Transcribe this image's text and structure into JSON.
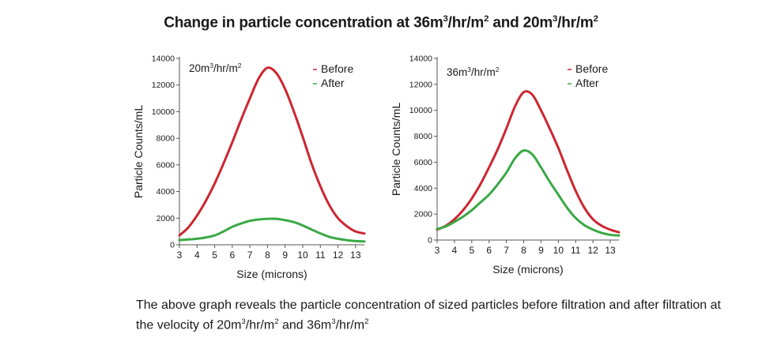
{
  "title": {
    "parts": [
      {
        "t": "Change in particle concentration at 36m"
      },
      {
        "t": "3",
        "sup": true
      },
      {
        "t": "/hr/m"
      },
      {
        "t": "2",
        "sup": true
      },
      {
        "t": " and 20m"
      },
      {
        "t": "3",
        "sup": true
      },
      {
        "t": "/hr/m"
      },
      {
        "t": "2",
        "sup": true
      }
    ]
  },
  "caption": {
    "parts": [
      {
        "t": "The above graph reveals the particle concentration of sized particles before filtration and after filtration at the velocity of 20m"
      },
      {
        "t": "3",
        "sup": true
      },
      {
        "t": "/hr/m"
      },
      {
        "t": "2",
        "sup": true
      },
      {
        "t": " and 36m"
      },
      {
        "t": "3",
        "sup": true
      },
      {
        "t": "/hr/m"
      },
      {
        "t": "2",
        "sup": true
      }
    ]
  },
  "colors": {
    "before": "#cc2630",
    "after": "#3aa845",
    "axis": "#555555",
    "text": "#1a1a1a"
  },
  "chart_data": [
    {
      "type": "line",
      "annotation": {
        "base": "20m",
        "sup1": "3",
        "mid": "/hr/m",
        "sup2": "2"
      },
      "xlabel": "Size (microns)",
      "ylabel": "Particle Counts/mL",
      "xlim": [
        3,
        13.5
      ],
      "ylim": [
        0,
        14000
      ],
      "xticks": [
        3,
        4,
        5,
        6,
        7,
        8,
        9,
        10,
        11,
        12,
        13
      ],
      "yticks": [
        0,
        2000,
        4000,
        6000,
        8000,
        10000,
        12000,
        14000
      ],
      "legend_position": "top-right",
      "grid": false,
      "series": [
        {
          "name": "Before",
          "key": "before",
          "x": [
            3,
            3.5,
            4,
            4.5,
            5,
            5.5,
            6,
            6.5,
            7,
            7.5,
            8,
            8.5,
            9,
            9.5,
            10,
            10.5,
            11,
            11.5,
            12,
            12.5,
            13,
            13.5
          ],
          "y": [
            700,
            1300,
            2200,
            3300,
            4600,
            6100,
            7700,
            9400,
            11000,
            12500,
            13300,
            12900,
            11700,
            10000,
            8100,
            6100,
            4400,
            3000,
            2000,
            1400,
            1000,
            850
          ]
        },
        {
          "name": "After",
          "key": "after",
          "x": [
            3,
            3.5,
            4,
            4.5,
            5,
            5.5,
            6,
            6.5,
            7,
            7.5,
            8,
            8.5,
            9,
            9.5,
            10,
            10.5,
            11,
            11.5,
            12,
            12.5,
            13,
            13.5
          ],
          "y": [
            350,
            400,
            450,
            550,
            700,
            1000,
            1350,
            1600,
            1800,
            1900,
            1950,
            1950,
            1850,
            1700,
            1450,
            1150,
            850,
            600,
            450,
            350,
            280,
            250
          ]
        }
      ]
    },
    {
      "type": "line",
      "annotation": {
        "base": "36m",
        "sup1": "3",
        "mid": "/hr/m",
        "sup2": "2"
      },
      "xlabel": "Size (microns)",
      "ylabel": "Particle Counts/mL",
      "xlim": [
        3,
        13.5
      ],
      "ylim": [
        0,
        14000
      ],
      "xticks": [
        3,
        4,
        5,
        6,
        7,
        8,
        9,
        10,
        11,
        12,
        13
      ],
      "yticks": [
        0,
        2000,
        4000,
        6000,
        8000,
        10000,
        12000,
        14000
      ],
      "legend_position": "top-right",
      "grid": false,
      "series": [
        {
          "name": "Before",
          "key": "before",
          "x": [
            3,
            3.5,
            4,
            4.5,
            5,
            5.5,
            6,
            6.5,
            7,
            7.5,
            8,
            8.5,
            9,
            9.5,
            10,
            10.5,
            11,
            11.5,
            12,
            12.5,
            13,
            13.5
          ],
          "y": [
            800,
            1100,
            1600,
            2300,
            3200,
            4300,
            5600,
            7000,
            8600,
            10300,
            11400,
            11200,
            10000,
            8600,
            7100,
            5400,
            3800,
            2500,
            1600,
            1100,
            800,
            600
          ]
        },
        {
          "name": "After",
          "key": "after",
          "x": [
            3,
            3.5,
            4,
            4.5,
            5,
            5.5,
            6,
            6.5,
            7,
            7.5,
            8,
            8.5,
            9,
            9.5,
            10,
            10.5,
            11,
            11.5,
            12,
            12.5,
            13,
            13.5
          ],
          "y": [
            850,
            1050,
            1400,
            1800,
            2300,
            2900,
            3500,
            4300,
            5200,
            6300,
            6900,
            6600,
            5600,
            4500,
            3500,
            2500,
            1700,
            1150,
            800,
            550,
            400,
            350
          ]
        }
      ]
    }
  ]
}
